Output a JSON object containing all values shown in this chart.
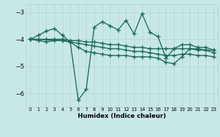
{
  "title": "",
  "xlabel": "Humidex (Indice chaleur)",
  "ylabel": "",
  "bg_color": "#c8e8e8",
  "grid_color": "#b8d8d8",
  "line_color": "#1a6858",
  "xlim": [
    -0.5,
    23.5
  ],
  "ylim": [
    -6.5,
    -2.7
  ],
  "yticks": [
    -6,
    -5,
    -4,
    -3
  ],
  "xticks": [
    0,
    1,
    2,
    3,
    4,
    5,
    6,
    7,
    8,
    9,
    10,
    11,
    12,
    13,
    14,
    15,
    16,
    17,
    18,
    19,
    20,
    21,
    22,
    23
  ],
  "series": {
    "line1_zigzag": {
      "x": [
        0,
        1,
        2,
        3,
        4,
        5,
        6,
        7,
        8,
        9,
        10,
        11,
        12,
        13,
        14,
        15,
        16,
        17,
        18,
        19,
        20,
        21,
        22,
        23
      ],
      "y": [
        -4.0,
        -3.85,
        -3.7,
        -3.6,
        -3.85,
        -4.1,
        -6.25,
        -5.85,
        -3.55,
        -3.35,
        -3.5,
        -3.65,
        -3.3,
        -3.8,
        -3.05,
        -3.75,
        -3.9,
        -4.7,
        -4.35,
        -4.2,
        -4.2,
        -4.3,
        -4.3,
        -4.4
      ]
    },
    "line2_flat": {
      "x": [
        0,
        1,
        2,
        3,
        4,
        5,
        6,
        7,
        8,
        9,
        10,
        11,
        12,
        13,
        14,
        15,
        16,
        17,
        18,
        19,
        20,
        21,
        22,
        23
      ],
      "y": [
        -4.0,
        -4.0,
        -4.0,
        -4.0,
        -4.0,
        -4.05,
        -4.05,
        -4.1,
        -4.1,
        -4.15,
        -4.2,
        -4.2,
        -4.25,
        -4.3,
        -4.3,
        -4.35,
        -4.35,
        -4.35,
        -4.35,
        -4.35,
        -4.35,
        -4.4,
        -4.4,
        -4.4
      ]
    },
    "line3_slope": {
      "x": [
        0,
        1,
        2,
        3,
        4,
        5,
        6,
        7,
        8,
        9,
        10,
        11,
        12,
        13,
        14,
        15,
        16,
        17,
        18,
        19,
        20,
        21,
        22,
        23
      ],
      "y": [
        -4.0,
        -4.05,
        -4.1,
        -4.05,
        -4.05,
        -4.1,
        -4.15,
        -4.2,
        -4.25,
        -4.3,
        -4.35,
        -4.35,
        -4.4,
        -4.45,
        -4.45,
        -4.5,
        -4.55,
        -4.6,
        -4.6,
        -4.55,
        -4.55,
        -4.6,
        -4.6,
        -4.65
      ]
    },
    "line4_lower": {
      "x": [
        0,
        4,
        5,
        6,
        7,
        8,
        9,
        10,
        11,
        12,
        13,
        14,
        15,
        16,
        17,
        18,
        19,
        20,
        21,
        22,
        23
      ],
      "y": [
        -4.0,
        -4.05,
        -4.1,
        -4.3,
        -4.45,
        -4.5,
        -4.55,
        -4.6,
        -4.6,
        -4.6,
        -4.65,
        -4.65,
        -4.65,
        -4.7,
        -4.85,
        -4.9,
        -4.65,
        -4.35,
        -4.35,
        -4.4,
        -4.5
      ]
    }
  },
  "marker": "+",
  "markersize": 4,
  "markeredgewidth": 1.0,
  "linewidth": 1.0
}
